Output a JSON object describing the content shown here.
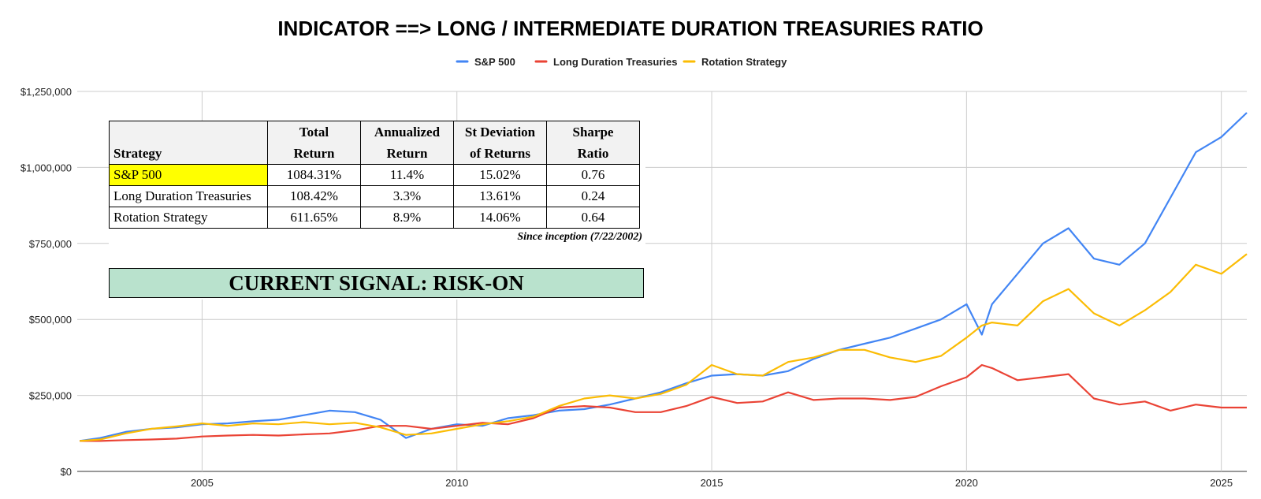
{
  "chart_data": {
    "type": "line",
    "title": "INDICATOR ==> LONG / INTERMEDIATE DURATION TREASURIES RATIO",
    "ylim": [
      0,
      1250000
    ],
    "xlim": [
      2002.55,
      2025.5
    ],
    "grid": true,
    "legend_position": "top",
    "y_ticks": [
      {
        "value": 0,
        "label": "$0"
      },
      {
        "value": 250000,
        "label": "$250,000"
      },
      {
        "value": 500000,
        "label": "$500,000"
      },
      {
        "value": 750000,
        "label": "$750,000"
      },
      {
        "value": 1000000,
        "label": "$1,000,000"
      },
      {
        "value": 1250000,
        "label": "$1,250,000"
      }
    ],
    "x_ticks": [
      {
        "value": 2005,
        "label": "2005"
      },
      {
        "value": 2010,
        "label": "2010"
      },
      {
        "value": 2015,
        "label": "2015"
      },
      {
        "value": 2020,
        "label": "2020"
      },
      {
        "value": 2025,
        "label": "2025"
      }
    ],
    "x": [
      2002.6,
      2003,
      2003.5,
      2004,
      2004.5,
      2005,
      2005.5,
      2006,
      2006.5,
      2007,
      2007.5,
      2008,
      2008.5,
      2009,
      2009.5,
      2010,
      2010.5,
      2011,
      2011.5,
      2012,
      2012.5,
      2013,
      2013.5,
      2014,
      2014.5,
      2015,
      2015.5,
      2016,
      2016.5,
      2017,
      2017.5,
      2018,
      2018.5,
      2019,
      2019.5,
      2020,
      2020.3,
      2020.5,
      2021,
      2021.5,
      2022,
      2022.5,
      2023,
      2023.5,
      2024,
      2024.5,
      2025,
      2025.5
    ],
    "series": [
      {
        "name": "S&P 500",
        "color": "#4285f4",
        "values": [
          100000,
          110000,
          130000,
          140000,
          145000,
          155000,
          158000,
          165000,
          170000,
          185000,
          200000,
          195000,
          170000,
          110000,
          140000,
          155000,
          150000,
          175000,
          185000,
          200000,
          205000,
          220000,
          240000,
          260000,
          290000,
          315000,
          320000,
          315000,
          330000,
          370000,
          400000,
          420000,
          440000,
          470000,
          500000,
          550000,
          450000,
          550000,
          650000,
          750000,
          800000,
          700000,
          680000,
          750000,
          900000,
          1050000,
          1100000,
          1180000
        ]
      },
      {
        "name": "Long Duration Treasuries",
        "color": "#ea4335",
        "values": [
          100000,
          100000,
          103000,
          105000,
          108000,
          115000,
          118000,
          120000,
          118000,
          122000,
          125000,
          135000,
          150000,
          150000,
          140000,
          150000,
          160000,
          155000,
          175000,
          210000,
          215000,
          210000,
          195000,
          195000,
          215000,
          245000,
          225000,
          230000,
          260000,
          235000,
          240000,
          240000,
          235000,
          245000,
          280000,
          310000,
          350000,
          340000,
          300000,
          310000,
          320000,
          240000,
          220000,
          230000,
          200000,
          220000,
          210000,
          210000
        ]
      },
      {
        "name": "Rotation Strategy",
        "color": "#fbbc04",
        "values": [
          100000,
          105000,
          125000,
          140000,
          148000,
          158000,
          150000,
          158000,
          155000,
          162000,
          155000,
          160000,
          145000,
          120000,
          125000,
          140000,
          155000,
          165000,
          180000,
          215000,
          240000,
          250000,
          240000,
          255000,
          285000,
          350000,
          320000,
          315000,
          360000,
          375000,
          400000,
          400000,
          375000,
          360000,
          380000,
          440000,
          480000,
          490000,
          480000,
          560000,
          600000,
          520000,
          480000,
          530000,
          590000,
          680000,
          650000,
          715000
        ]
      }
    ]
  },
  "table": {
    "headers": {
      "strategy": "Strategy",
      "total_1": "Total",
      "total_2": "Return",
      "annual_1": "Annualized",
      "annual_2": "Return",
      "std_1": "St Deviation",
      "std_2": "of Returns",
      "sharpe_1": "Sharpe",
      "sharpe_2": "Ratio"
    },
    "highlight_color": "#ffff00",
    "rows": [
      {
        "name": "S&P 500",
        "total": "1084.31%",
        "annual": "11.4%",
        "std": "15.02%",
        "sharpe": "0.76"
      },
      {
        "name": "Long Duration Treasuries",
        "total": "108.42%",
        "annual": "3.3%",
        "std": "13.61%",
        "sharpe": "0.24"
      },
      {
        "name": "Rotation Strategy",
        "total": "611.65%",
        "annual": "8.9%",
        "std": "14.06%",
        "sharpe": "0.64"
      }
    ],
    "since": "Since inception (7/22/2002)"
  },
  "signal": {
    "text": "CURRENT SIGNAL: RISK-ON",
    "color": "#b9e2cd"
  }
}
